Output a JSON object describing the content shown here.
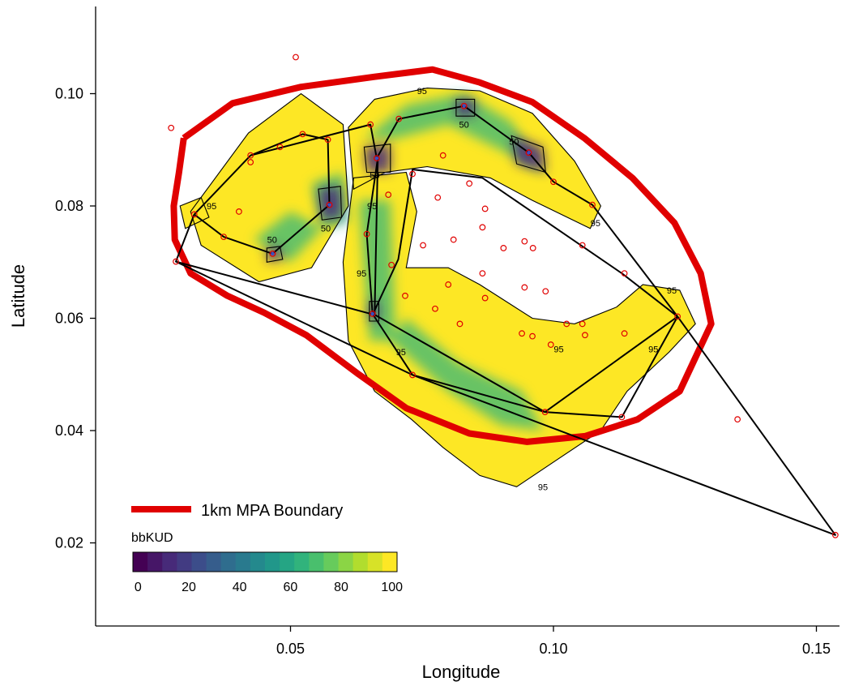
{
  "chart_data": {
    "type": "scatter",
    "xlabel": "Longitude",
    "ylabel": "Latitude",
    "xlim": [
      0.0135,
      0.1585
    ],
    "ylim": [
      0.0065,
      0.115
    ],
    "xticks": [
      0.05,
      0.1,
      0.15
    ],
    "xtick_labels": [
      "0.05",
      "0.10",
      "0.15"
    ],
    "yticks": [
      0.02,
      0.04,
      0.06,
      0.08,
      0.1
    ],
    "ytick_labels": [
      "0.02",
      "0.04",
      "0.06",
      "0.08",
      "0.10"
    ],
    "grid": false,
    "legend": {
      "position": "bottom-left",
      "boundary_label": "1km MPA Boundary",
      "colorbar_title": "bbKUD",
      "colorbar_ticks": [
        "0",
        "20",
        "40",
        "60",
        "80",
        "100"
      ],
      "colorbar_range": [
        -2,
        102
      ]
    },
    "colors": {
      "boundary": "#e00000",
      "detections": "#e00000",
      "track": "#000000",
      "contour": "#000000",
      "viridis": [
        "#440154",
        "#482878",
        "#3e4989",
        "#31688e",
        "#26828e",
        "#1f9e89",
        "#35b779",
        "#6ece58",
        "#b5de2b",
        "#fde725"
      ]
    },
    "contour_levels": [
      "50",
      "95"
    ],
    "mpa_boundary": [
      [
        0.0297,
        0.0921
      ],
      [
        0.039,
        0.0983
      ],
      [
        0.052,
        0.1012
      ],
      [
        0.066,
        0.103
      ],
      [
        0.077,
        0.1043
      ],
      [
        0.086,
        0.102
      ],
      [
        0.096,
        0.0985
      ],
      [
        0.106,
        0.092
      ],
      [
        0.115,
        0.085
      ],
      [
        0.123,
        0.077
      ],
      [
        0.128,
        0.068
      ],
      [
        0.13,
        0.059
      ],
      [
        0.127,
        0.053
      ],
      [
        0.124,
        0.047
      ],
      [
        0.116,
        0.042
      ],
      [
        0.106,
        0.039
      ],
      [
        0.095,
        0.038
      ],
      [
        0.084,
        0.0395
      ],
      [
        0.072,
        0.044
      ],
      [
        0.063,
        0.05
      ],
      [
        0.053,
        0.057
      ],
      [
        0.045,
        0.061
      ],
      [
        0.038,
        0.064
      ],
      [
        0.031,
        0.068
      ],
      [
        0.028,
        0.074
      ],
      [
        0.0278,
        0.08
      ],
      [
        0.0288,
        0.086
      ],
      [
        0.0297,
        0.0921
      ]
    ],
    "track": [
      [
        0.0282,
        0.0701
      ],
      [
        0.0317,
        0.0785
      ],
      [
        0.0424,
        0.089
      ],
      [
        0.0523,
        0.0928
      ],
      [
        0.0571,
        0.0918
      ],
      [
        0.0574,
        0.0802
      ],
      [
        0.0466,
        0.0715
      ],
      [
        0.0373,
        0.0745
      ],
      [
        0.0317,
        0.0785
      ],
      [
        0.0424,
        0.089
      ],
      [
        0.0652,
        0.0945
      ],
      [
        0.0664,
        0.0885
      ],
      [
        0.0706,
        0.0955
      ],
      [
        0.083,
        0.0978
      ],
      [
        0.0953,
        0.0895
      ],
      [
        0.1,
        0.0843
      ],
      [
        0.1074,
        0.0802
      ],
      [
        0.1236,
        0.0603
      ],
      [
        0.113,
        0.0424
      ],
      [
        0.0984,
        0.0433
      ],
      [
        0.0732,
        0.0499
      ],
      [
        0.0656,
        0.0608
      ],
      [
        0.0645,
        0.075
      ],
      [
        0.0666,
        0.0885
      ],
      [
        0.066,
        0.0606
      ],
      [
        0.0282,
        0.0701
      ],
      [
        0.0732,
        0.0499
      ],
      [
        0.1536,
        0.0214
      ],
      [
        0.1236,
        0.0603
      ],
      [
        0.113,
        0.068
      ],
      [
        0.0865,
        0.085
      ],
      [
        0.0732,
        0.0865
      ],
      [
        0.0705,
        0.0705
      ],
      [
        0.0657,
        0.0608
      ],
      [
        0.0984,
        0.0433
      ],
      [
        0.1236,
        0.0603
      ]
    ],
    "detections": [
      [
        0.0273,
        0.0939
      ],
      [
        0.051,
        0.1065
      ],
      [
        0.0282,
        0.0701
      ],
      [
        0.0317,
        0.0785
      ],
      [
        0.0373,
        0.0745
      ],
      [
        0.0402,
        0.079
      ],
      [
        0.0424,
        0.0878
      ],
      [
        0.0424,
        0.089
      ],
      [
        0.048,
        0.0905
      ],
      [
        0.0523,
        0.0928
      ],
      [
        0.0571,
        0.0918
      ],
      [
        0.0574,
        0.0802
      ],
      [
        0.0466,
        0.0715
      ],
      [
        0.0652,
        0.0945
      ],
      [
        0.0664,
        0.0885
      ],
      [
        0.0706,
        0.0955
      ],
      [
        0.083,
        0.0978
      ],
      [
        0.0953,
        0.0895
      ],
      [
        0.1,
        0.0843
      ],
      [
        0.1074,
        0.0802
      ],
      [
        0.1236,
        0.0603
      ],
      [
        0.113,
        0.0424
      ],
      [
        0.0984,
        0.0433
      ],
      [
        0.0732,
        0.0499
      ],
      [
        0.0656,
        0.0608
      ],
      [
        0.0645,
        0.075
      ],
      [
        0.0686,
        0.082
      ],
      [
        0.0692,
        0.0695
      ],
      [
        0.0732,
        0.0857
      ],
      [
        0.079,
        0.089
      ],
      [
        0.078,
        0.0815
      ],
      [
        0.081,
        0.074
      ],
      [
        0.084,
        0.084
      ],
      [
        0.087,
        0.0795
      ],
      [
        0.0865,
        0.0762
      ],
      [
        0.0752,
        0.073
      ],
      [
        0.0905,
        0.0725
      ],
      [
        0.0945,
        0.0737
      ],
      [
        0.0961,
        0.0725
      ],
      [
        0.0865,
        0.068
      ],
      [
        0.0945,
        0.0655
      ],
      [
        0.0985,
        0.0648
      ],
      [
        0.08,
        0.066
      ],
      [
        0.0718,
        0.064
      ],
      [
        0.0775,
        0.0617
      ],
      [
        0.087,
        0.0636
      ],
      [
        0.094,
        0.0573
      ],
      [
        0.096,
        0.0568
      ],
      [
        0.0995,
        0.0553
      ],
      [
        0.1025,
        0.059
      ],
      [
        0.1055,
        0.059
      ],
      [
        0.106,
        0.057
      ],
      [
        0.1135,
        0.0573
      ],
      [
        0.1055,
        0.073
      ],
      [
        0.1135,
        0.068
      ],
      [
        0.0822,
        0.059
      ],
      [
        0.135,
        0.042
      ],
      [
        0.1536,
        0.0214
      ]
    ],
    "core_points": [
      [
        0.0466,
        0.0715
      ],
      [
        0.0574,
        0.0802
      ],
      [
        0.0664,
        0.0885
      ],
      [
        0.0953,
        0.0895
      ],
      [
        0.083,
        0.0978
      ],
      [
        0.0656,
        0.0608
      ]
    ]
  }
}
